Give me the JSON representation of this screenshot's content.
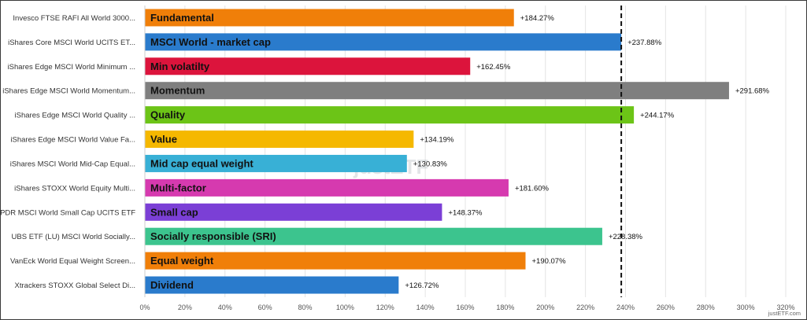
{
  "chart_data": {
    "type": "bar",
    "orientation": "horizontal",
    "categories": [
      "Invesco FTSE RAFI All World 3000...",
      "iShares Core MSCI World UCITS ET...",
      "iShares Edge MSCI World Minimum ...",
      "iShares Edge MSCI World Momentum...",
      "iShares Edge MSCI World Quality ...",
      "iShares Edge MSCI World Value Fa...",
      "iShares MSCI World Mid-Cap Equal...",
      "iShares STOXX World Equity Multi...",
      "SPDR MSCI World Small Cap UCITS ETF",
      "UBS ETF (LU) MSCI World Socially...",
      "VanEck World Equal Weight Screen...",
      "Xtrackers STOXX Global Select Di..."
    ],
    "bar_labels": [
      "Fundamental",
      "MSCI World - market cap",
      "Min volatilty",
      "Momentum",
      "Quality",
      "Value",
      "Mid cap equal weight",
      "Multi-factor",
      "Small cap",
      "Socially responsible (SRI)",
      "Equal weight",
      "Dividend"
    ],
    "values": [
      184.27,
      237.88,
      162.45,
      291.68,
      244.17,
      134.19,
      130.83,
      181.6,
      148.37,
      228.38,
      190.07,
      126.72
    ],
    "value_labels": [
      "+184.27%",
      "+237.88%",
      "+162.45%",
      "+291.68%",
      "+244.17%",
      "+134.19%",
      "+130.83%",
      "+181.60%",
      "+148.37%",
      "+228.38%",
      "+190.07%",
      "+126.72%"
    ],
    "colors": [
      "#f07f09",
      "#2a7bcc",
      "#dc143c",
      "#7f7f7f",
      "#6cc417",
      "#f5b800",
      "#38b0d6",
      "#d63aaf",
      "#7b3fd6",
      "#3cc48e",
      "#f07f09",
      "#2a7bcc"
    ],
    "xlim": [
      0,
      320
    ],
    "xticks": [
      "0%",
      "20%",
      "40%",
      "60%",
      "80%",
      "100%",
      "120%",
      "140%",
      "160%",
      "180%",
      "200%",
      "220%",
      "240%",
      "260%",
      "280%",
      "300%",
      "320%"
    ],
    "reference_line": 237.88,
    "grid": true,
    "watermark": "justETF",
    "credit": "justETF.com"
  }
}
